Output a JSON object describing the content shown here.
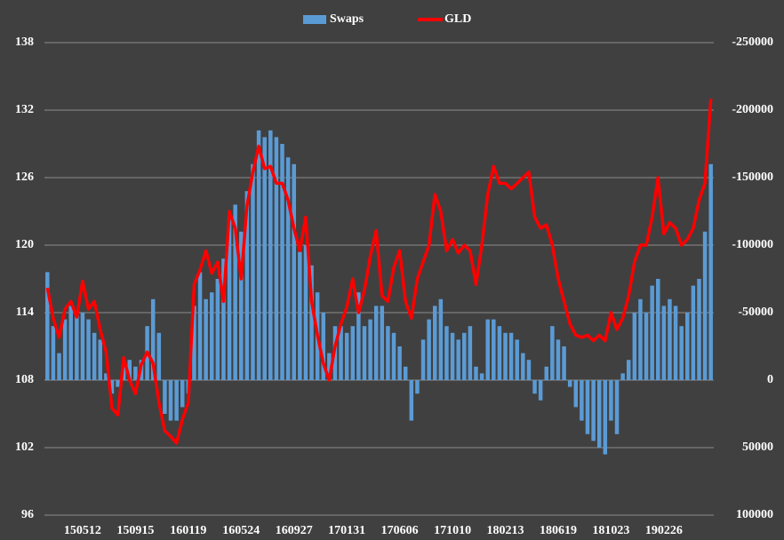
{
  "chart_data": {
    "type": "bar_line",
    "categories": [
      null,
      null,
      null,
      null,
      null,
      null,
      "150512",
      null,
      null,
      null,
      null,
      null,
      null,
      null,
      null,
      "150915",
      null,
      null,
      null,
      null,
      null,
      null,
      null,
      null,
      "160119",
      null,
      null,
      null,
      null,
      null,
      null,
      null,
      null,
      "160524",
      null,
      null,
      null,
      null,
      null,
      null,
      null,
      null,
      "160927",
      null,
      null,
      null,
      null,
      null,
      null,
      null,
      null,
      "170131",
      null,
      null,
      null,
      null,
      null,
      null,
      null,
      null,
      "170606",
      null,
      null,
      null,
      null,
      null,
      null,
      null,
      null,
      "171010",
      null,
      null,
      null,
      null,
      null,
      null,
      null,
      null,
      "180213",
      null,
      null,
      null,
      null,
      null,
      null,
      null,
      null,
      "180619",
      null,
      null,
      null,
      null,
      null,
      null,
      null,
      null,
      "181023",
      null,
      null,
      null,
      null,
      null,
      null,
      null,
      null,
      "190226",
      null,
      null,
      null,
      null,
      null,
      null,
      null,
      null
    ],
    "series": [
      {
        "name": "Swaps",
        "kind": "bar",
        "axis": "y2",
        "color": "#5b9bd5",
        "values": [
          -80000,
          -40000,
          -20000,
          -45000,
          -55000,
          -48000,
          -50000,
          -45000,
          -35000,
          -30000,
          -5000,
          10000,
          5000,
          -10000,
          -15000,
          -10000,
          -15000,
          -40000,
          -60000,
          -35000,
          25000,
          30000,
          30000,
          20000,
          10000,
          -55000,
          -80000,
          -60000,
          -65000,
          -75000,
          -90000,
          -120000,
          -130000,
          -110000,
          -140000,
          -160000,
          -185000,
          -180000,
          -185000,
          -180000,
          -175000,
          -165000,
          -160000,
          -95000,
          -100000,
          -85000,
          -65000,
          -50000,
          -20000,
          -40000,
          -40000,
          -35000,
          -40000,
          -65000,
          -40000,
          -45000,
          -55000,
          -55000,
          -40000,
          -35000,
          -25000,
          -10000,
          30000,
          10000,
          -30000,
          -45000,
          -55000,
          -60000,
          -40000,
          -35000,
          -30000,
          -35000,
          -40000,
          -10000,
          -5000,
          -45000,
          -45000,
          -40000,
          -35000,
          -35000,
          -30000,
          -20000,
          -15000,
          10000,
          15000,
          -10000,
          -40000,
          -30000,
          -25000,
          5000,
          20000,
          30000,
          40000,
          45000,
          50000,
          55000,
          30000,
          40000,
          -5000,
          -15000,
          -50000,
          -60000,
          -50000,
          -70000,
          -75000,
          -55000,
          -60000,
          -55000,
          -40000,
          -50000,
          -70000,
          -75000,
          -110000,
          -160000
        ]
      },
      {
        "name": "GLD",
        "kind": "line",
        "axis": "y",
        "color": "#ff0000",
        "values": [
          116.2,
          113.5,
          111.8,
          114.3,
          115,
          113.6,
          116.8,
          114.3,
          115,
          112.5,
          110.5,
          105.5,
          104.9,
          110,
          108,
          106.8,
          109.4,
          110.5,
          109.5,
          106,
          103.5,
          103,
          102.4,
          104.5,
          106,
          116.5,
          117.8,
          119.5,
          117.5,
          118.5,
          115,
          123,
          121.5,
          117,
          123.5,
          126.5,
          128.8,
          126.8,
          127,
          125.5,
          125.5,
          124,
          121.5,
          119.5,
          122.5,
          115,
          112,
          109.5,
          108,
          111,
          113,
          114.5,
          117,
          114,
          116,
          119,
          121.3,
          115.5,
          115,
          118,
          119.5,
          115,
          113.5,
          117,
          118.5,
          120,
          124.5,
          123,
          119.5,
          120.5,
          119.3,
          120,
          119.5,
          116.5,
          120,
          124.5,
          127,
          125.5,
          125.5,
          125,
          125.5,
          126,
          126.5,
          122.5,
          121.5,
          121.8,
          120,
          117,
          115,
          113,
          112,
          111.8,
          112,
          111.5,
          112,
          111.5,
          114,
          112.5,
          113.5,
          115.5,
          118.5,
          120,
          120,
          122.5,
          126,
          121,
          122,
          121.5,
          120,
          120.5,
          121.5,
          124,
          125.5,
          133
        ]
      }
    ],
    "ylim": [
      96,
      138
    ],
    "yticks": [
      96,
      102,
      108,
      114,
      120,
      126,
      132,
      138
    ],
    "y2lim": [
      -250000,
      100000
    ],
    "y2_inverted": true,
    "y2ticks": [
      -250000,
      -200000,
      -150000,
      -100000,
      -50000,
      0,
      50000,
      100000
    ],
    "grid": true,
    "legend": "top"
  }
}
